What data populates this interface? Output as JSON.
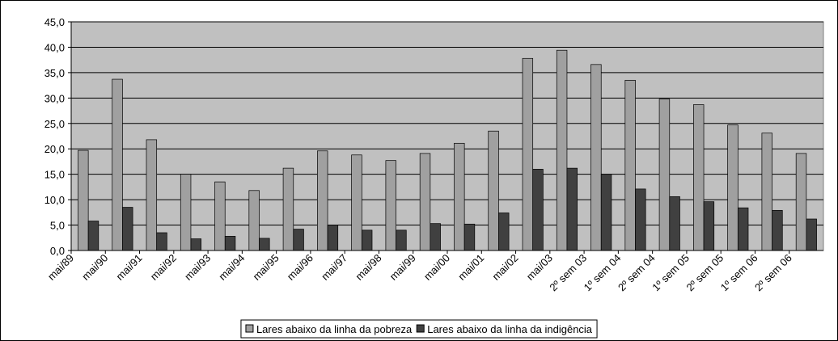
{
  "chart_data": {
    "type": "bar",
    "categories": [
      "mai/89",
      "mai/90",
      "mai/91",
      "mai/92",
      "mai/93",
      "mai/94",
      "mai/95",
      "mai/96",
      "mai/97",
      "mai/98",
      "mai/99",
      "mai/00",
      "mai/01",
      "mai/02",
      "mai/03",
      "2º sem 03",
      "1º sem 04",
      "2º sem 04",
      "1º sem 05",
      "2º sem 05",
      "1º sem 06",
      "2º sem 06"
    ],
    "series": [
      {
        "name": "Lares abaixo da linha da pobreza",
        "color": "#a0a0a0",
        "values": [
          19.7,
          33.7,
          21.8,
          15.0,
          13.5,
          11.8,
          16.2,
          19.6,
          18.8,
          17.7,
          19.1,
          21.1,
          23.5,
          37.8,
          39.4,
          36.6,
          33.5,
          29.8,
          28.7,
          24.7,
          23.1,
          19.1
        ]
      },
      {
        "name": "Lares abaixo da linha da indigência",
        "color": "#404040",
        "values": [
          5.8,
          8.5,
          3.5,
          2.3,
          2.8,
          2.4,
          4.2,
          5.0,
          4.0,
          4.0,
          5.3,
          5.2,
          7.4,
          16.0,
          16.2,
          15.0,
          12.1,
          10.6,
          9.6,
          8.4,
          7.9,
          6.2
        ]
      }
    ],
    "ylim": [
      0,
      45
    ],
    "yticks": [
      {
        "value": 0,
        "label": "0,0"
      },
      {
        "value": 5,
        "label": "5,0"
      },
      {
        "value": 10,
        "label": "10,0"
      },
      {
        "value": 15,
        "label": "15,0"
      },
      {
        "value": 20,
        "label": "20,0"
      },
      {
        "value": 25,
        "label": "25,0"
      },
      {
        "value": 30,
        "label": "30,0"
      },
      {
        "value": 35,
        "label": "35,0"
      },
      {
        "value": 40,
        "label": "40,0"
      },
      {
        "value": 45,
        "label": "45,0"
      }
    ],
    "grid": true,
    "plot_background": "#c0c0c0",
    "legend": "bottom"
  }
}
